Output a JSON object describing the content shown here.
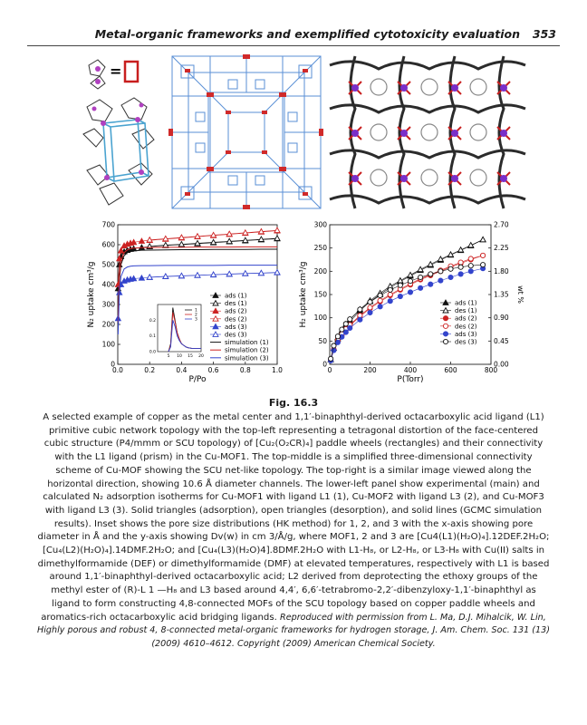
{
  "header": {
    "title": "Metal-organic frameworks and exemplified cytotoxicity evaluation",
    "page_number": "353"
  },
  "figure": {
    "label": "Fig. 16.3",
    "caption": "A selected example of copper as the metal center and 1,1′-binaphthyl-derived octacarboxylic acid ligand (L1) primitive cubic network topology with the top-left representing a tetragonal distortion of the face-centered cubic structure (P4/mmm or SCU topology) of [Cu₂(O₂CR)₄] paddle wheels (rectangles) and their connectivity with the L1 ligand (prism) in the Cu-MOF1. The top-middle is a simplified three-dimensional connectivity scheme of Cu-MOF showing the SCU net-like topology. The top-right is a similar image viewed along the horizontal direction, showing 10.6 Å diameter channels. The lower-left panel show experimental (main) and calculated N₂ adsorption isotherms for Cu-MOF1 with ligand L1 (1), Cu-MOF2 with ligand L3 (2), and Cu-MOF3 with ligand L3 (3). Solid triangles (adsorption), open triangles (desorption), and solid lines (GCMC simulation results). Inset shows the pore size distributions (HK method) for 1, 2, and 3 with the x-axis showing pore diameter in Å and the y-axis showing Dv(w) in cm 3/Å/g, where MOF1, 2 and 3 are [Cu4(L1)(H₂O)₄].12DEF.2H₂O; [Cu₄(L2)(H₂O)₄].14DMF.2H₂O; and [Cu₄(L3)(H₂O)4].8DMF.2H₂O with L1-H₈, or L2-H₈, or L3-H₈ with Cu(II) salts in dimethylformamide (DEF) or dimethylformamide (DMF) at elevated temperatures, respectively with L1 is based around 1,1′-binaphthyl-derived octacarboxylic acid; L2 derived from deprotecting the ethoxy groups of the methyl ester of (R)-L 1 —H₈ and L3 based around 4,4′, 6,6′-tetrabromo-2,2′-dibenzyloxy-1,1′-binaphthyl as ligand to form constructing 4,8-connected MOFs of the SCU topology based on copper paddle wheels and aromatics-rich octacarboxylic acid bridging ligands.",
    "credit": "Reproduced with permission from L. Ma, D.J. Mihalcik, W. Lin, Highly porous and robust 4, 8-connected metal-organic frameworks for hydrogen storage, J. Am. Chem. Soc. 131 (13) (2009) 4610–4612. Copyright (2009) American Chemical Society."
  },
  "icons": {
    "equals_glyph": "="
  },
  "chart_data": [
    {
      "type": "line",
      "xlabel": "P/Po",
      "ylabel": "N₂ uptake cm³/g",
      "xlim": [
        0.0,
        1.0
      ],
      "ylim": [
        0,
        700
      ],
      "xticks": [
        "0.0",
        "0.2",
        "0.4",
        "0.6",
        "0.8",
        "1.0"
      ],
      "yticks": [
        "0",
        "100",
        "200",
        "300",
        "400",
        "500",
        "600",
        "700"
      ],
      "legend_position": "bottom-right",
      "x": [
        0.002,
        0.01,
        0.02,
        0.04,
        0.06,
        0.08,
        0.1,
        0.15,
        0.2,
        0.3,
        0.4,
        0.5,
        0.6,
        0.7,
        0.8,
        0.9,
        1.0
      ],
      "series": [
        {
          "name": "ads (1)",
          "marker": "triangle-filled",
          "color": "#111111",
          "values": [
            380,
            500,
            540,
            565,
            572,
            577,
            580,
            586,
            590,
            596,
            600,
            605,
            610,
            615,
            620,
            625,
            630
          ]
        },
        {
          "name": "des (1)",
          "marker": "triangle-open",
          "color": "#111111",
          "values": [
            null,
            null,
            null,
            null,
            null,
            null,
            null,
            null,
            592,
            598,
            602,
            607,
            612,
            617,
            622,
            627,
            632
          ]
        },
        {
          "name": "ads (2)",
          "marker": "triangle-filled",
          "color": "#cc2222",
          "values": [
            400,
            530,
            570,
            595,
            603,
            608,
            612,
            618,
            622,
            628,
            634,
            640,
            646,
            652,
            658,
            664,
            670
          ]
        },
        {
          "name": "des (2)",
          "marker": "triangle-open",
          "color": "#cc2222",
          "values": [
            null,
            null,
            null,
            null,
            null,
            null,
            null,
            null,
            624,
            630,
            636,
            642,
            648,
            654,
            660,
            666,
            672
          ]
        },
        {
          "name": "ads (3)",
          "marker": "triangle-filled",
          "color": "#3344cc",
          "values": [
            230,
            360,
            400,
            418,
            424,
            427,
            430,
            433,
            436,
            440,
            443,
            446,
            449,
            452,
            455,
            457,
            460
          ]
        },
        {
          "name": "des (3)",
          "marker": "triangle-open",
          "color": "#3344cc",
          "values": [
            null,
            null,
            null,
            null,
            null,
            null,
            null,
            null,
            437,
            441,
            444,
            447,
            450,
            453,
            456,
            458,
            461
          ]
        },
        {
          "name": "simulation (1)",
          "marker": "line",
          "color": "#111111",
          "values": [
            200,
            420,
            500,
            545,
            560,
            566,
            569,
            572,
            573,
            574,
            575,
            575,
            576,
            576,
            576,
            577,
            577
          ]
        },
        {
          "name": "simulation (2)",
          "marker": "line",
          "color": "#cc2222",
          "values": [
            210,
            440,
            520,
            560,
            574,
            580,
            583,
            585,
            586,
            587,
            587,
            588,
            588,
            588,
            589,
            589,
            589
          ]
        },
        {
          "name": "simulation (3)",
          "marker": "line",
          "color": "#3344cc",
          "values": [
            150,
            360,
            440,
            478,
            488,
            492,
            494,
            495,
            495,
            496,
            496,
            496,
            496,
            497,
            497,
            497,
            497
          ]
        }
      ],
      "inset": {
        "type": "line",
        "xlim": [
          0,
          20
        ],
        "ylim": [
          0,
          0.3
        ],
        "xticks": [
          "5",
          "10",
          "15",
          "20"
        ],
        "yticks": [
          "0.0",
          "0.1",
          "0.2"
        ],
        "legend": [
          "1",
          "2",
          "3"
        ],
        "x": [
          5,
          6,
          7,
          8,
          9,
          10,
          11,
          12,
          13,
          14,
          16,
          18,
          20
        ],
        "series": [
          {
            "name": "1",
            "color": "#111111",
            "values": [
              0.0,
              0.05,
              0.28,
              0.2,
              0.12,
              0.08,
              0.05,
              0.04,
              0.03,
              0.025,
              0.02,
              0.02,
              0.02
            ]
          },
          {
            "name": "2",
            "color": "#cc2222",
            "values": [
              0.0,
              0.04,
              0.25,
              0.19,
              0.12,
              0.08,
              0.05,
              0.04,
              0.03,
              0.025,
              0.02,
              0.02,
              0.02
            ]
          },
          {
            "name": "3",
            "color": "#3344cc",
            "values": [
              0.0,
              0.03,
              0.2,
              0.16,
              0.1,
              0.07,
              0.05,
              0.04,
              0.03,
              0.025,
              0.02,
              0.02,
              0.02
            ]
          }
        ]
      }
    },
    {
      "type": "line",
      "xlabel": "P(Torr)",
      "ylabel": "H₂ uptake cm³/g",
      "ylabel_right": "wt %",
      "xlim": [
        0,
        800
      ],
      "ylim": [
        0,
        300
      ],
      "ylim_right": [
        0,
        2.7
      ],
      "xticks": [
        "0",
        "200",
        "400",
        "600",
        "800"
      ],
      "yticks": [
        "0",
        "50",
        "100",
        "150",
        "200",
        "250",
        "300"
      ],
      "yticks_right": [
        "0.00",
        "0.45",
        "0.90",
        "1.35",
        "1.80",
        "2.25",
        "2.70"
      ],
      "legend_position": "bottom-right",
      "x": [
        5,
        20,
        40,
        60,
        80,
        100,
        150,
        200,
        250,
        300,
        350,
        400,
        450,
        500,
        550,
        600,
        650,
        700,
        760
      ],
      "series": [
        {
          "name": "ads (1)",
          "marker": "triangle-filled",
          "color": "#111111",
          "values": [
            10,
            35,
            55,
            70,
            82,
            92,
            115,
            135,
            150,
            165,
            178,
            190,
            202,
            213,
            224,
            235,
            245,
            255,
            268
          ]
        },
        {
          "name": "des (1)",
          "marker": "triangle-open",
          "color": "#111111",
          "values": [
            null,
            null,
            58,
            73,
            86,
            96,
            118,
            137,
            153,
            168,
            180,
            192,
            204,
            215,
            226,
            236,
            246,
            256,
            268
          ]
        },
        {
          "name": "ads (2)",
          "marker": "circle-filled",
          "color": "#cc2222",
          "values": [
            9,
            32,
            50,
            63,
            74,
            83,
            103,
            120,
            135,
            148,
            160,
            171,
            182,
            191,
            200,
            209,
            217,
            225,
            234
          ]
        },
        {
          "name": "des (2)",
          "marker": "circle-open",
          "color": "#cc2222",
          "values": [
            null,
            null,
            52,
            65,
            76,
            85,
            105,
            122,
            137,
            150,
            162,
            173,
            184,
            193,
            202,
            211,
            219,
            227,
            234
          ]
        },
        {
          "name": "ads (3)",
          "marker": "circle-filled",
          "color": "#3344cc",
          "values": [
            8,
            30,
            47,
            59,
            69,
            78,
            96,
            111,
            124,
            136,
            146,
            155,
            164,
            172,
            180,
            187,
            194,
            200,
            206
          ]
        },
        {
          "name": "des (3)",
          "marker": "circle-open",
          "color": "#111111",
          "values": [
            12,
            40,
            60,
            75,
            87,
            97,
            118,
            134,
            148,
            160,
            170,
            179,
            187,
            194,
            200,
            205,
            209,
            212,
            214
          ]
        }
      ]
    }
  ]
}
